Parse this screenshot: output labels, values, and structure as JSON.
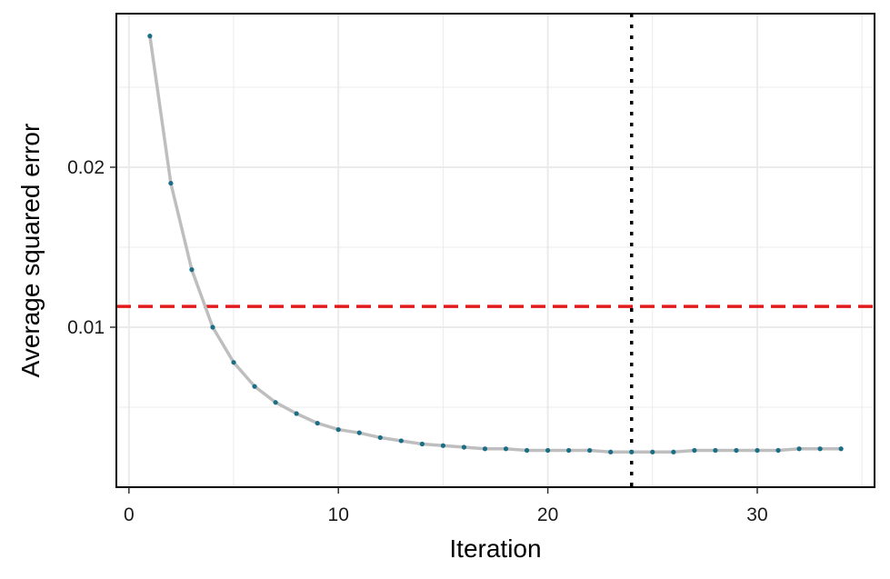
{
  "chart_data": {
    "type": "line",
    "title": "",
    "xlabel": "Iteration",
    "ylabel": "Average squared error",
    "xlim": [
      -0.6,
      35.6
    ],
    "ylim": [
      0.0,
      0.0296
    ],
    "x_ticks": [
      0,
      10,
      20,
      30
    ],
    "x_tick_labels": [
      "0",
      "10",
      "20",
      "30"
    ],
    "y_ticks": [
      0.01,
      0.02
    ],
    "y_tick_labels": [
      "0.01",
      "0.02"
    ],
    "y_minor_ticks": [
      0.005,
      0.015,
      0.025
    ],
    "x_minor_ticks": [
      5,
      15,
      25,
      35
    ],
    "grid": true,
    "series": [
      {
        "x": [
          1,
          2,
          3,
          4,
          5,
          6,
          7,
          8,
          9,
          10,
          11,
          12,
          13,
          14,
          15,
          16,
          17,
          18,
          19,
          20,
          21,
          22,
          23,
          24,
          25,
          26,
          27,
          28,
          29,
          30,
          31,
          32,
          33,
          34
        ],
        "values": [
          0.0282,
          0.019,
          0.0136,
          0.01,
          0.0078,
          0.0063,
          0.0053,
          0.0046,
          0.004,
          0.0036,
          0.0034,
          0.0031,
          0.0029,
          0.0027,
          0.0026,
          0.0025,
          0.0024,
          0.0024,
          0.0023,
          0.0023,
          0.0023,
          0.0023,
          0.0022,
          0.0022,
          0.0022,
          0.0022,
          0.0023,
          0.0023,
          0.0023,
          0.0023,
          0.0023,
          0.0024,
          0.0024,
          0.0024
        ]
      }
    ],
    "reference_lines": {
      "horizontal_y": 0.0113,
      "vertical_x": 24
    },
    "colors": {
      "line": "#bebebe",
      "points": "#1a6f86",
      "hline": "#e31a1c",
      "vline": "#000000",
      "grid": "#ebebeb",
      "border": "#000000"
    }
  }
}
